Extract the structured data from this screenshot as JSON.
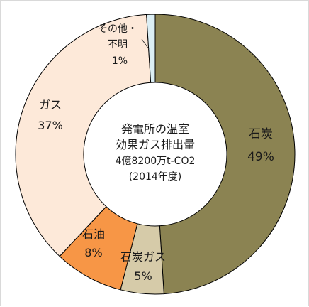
{
  "chart_data": {
    "type": "pie",
    "variant": "donut",
    "center_text": [
      "発電所の温室",
      "効果ガス排出量",
      "4億8200万t-CO2",
      "(2014年度)"
    ],
    "slices": [
      {
        "name": "石炭",
        "value": 49,
        "label": "49%",
        "color": "#8b8352"
      },
      {
        "name": "石炭ガス",
        "value": 5,
        "label": "5%",
        "color": "#d6cba9"
      },
      {
        "name": "石油",
        "value": 8,
        "label": "8%",
        "color": "#f79646"
      },
      {
        "name": "ガス",
        "value": 37,
        "label": "37%",
        "color": "#fde9d9"
      },
      {
        "name": "その他・不明",
        "name_lines": [
          "その他・",
          "不明"
        ],
        "value": 1,
        "label": "1%",
        "color": "#dbeef4"
      }
    ],
    "start_angle_deg": 0,
    "direction": "clockwise",
    "legend": "none"
  }
}
